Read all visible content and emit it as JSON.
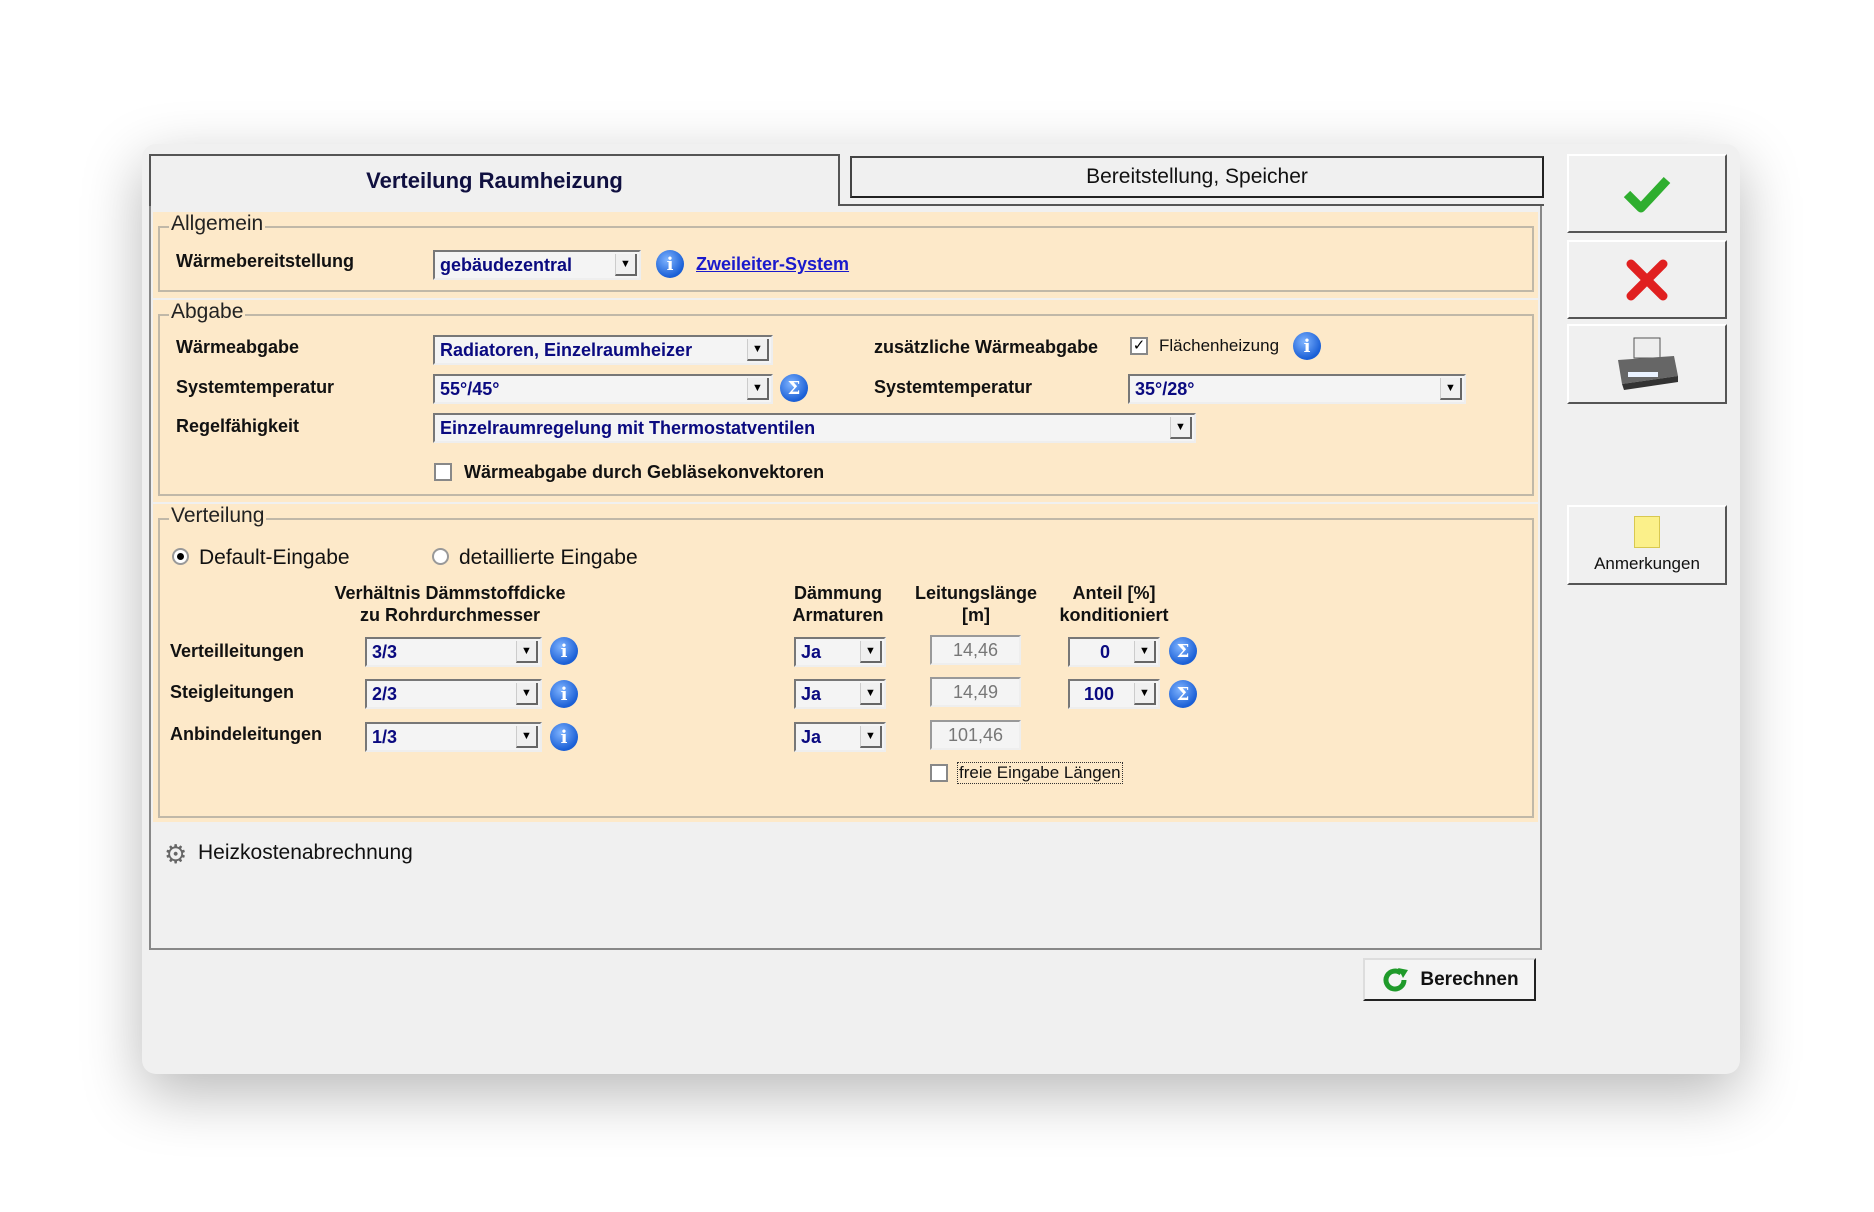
{
  "tabs": [
    {
      "label": "Verteilung Raumheizung",
      "active": true
    },
    {
      "label": "Bereitstellung, Speicher",
      "active": false
    }
  ],
  "allgemein": {
    "legend": "Allgemein",
    "waermebereitstellung": {
      "label": "Wärmebereitstellung",
      "value": "gebäudezentral"
    },
    "link": "Zweileiter-System"
  },
  "abgabe": {
    "legend": "Abgabe",
    "waermeabgabe": {
      "label": "Wärmeabgabe",
      "value": "Radiatoren, Einzelraumheizer"
    },
    "systemtemperatur": {
      "label": "Systemtemperatur",
      "value": "55°/45°"
    },
    "regelfaehigkeit": {
      "label": "Regelfähigkeit",
      "value": "Einzelraumregelung mit Thermostatventilen"
    },
    "geblaese": {
      "label": "Wärmeabgabe durch Gebläsekonvektoren",
      "checked": false
    },
    "zusaetzlich": {
      "label": "zusätzliche Wärmeabgabe",
      "checkbox_label": "Flächenheizung",
      "checked": true
    },
    "systemtemperatur2": {
      "label": "Systemtemperatur",
      "value": "35°/28°"
    }
  },
  "verteilung": {
    "legend": "Verteilung",
    "radio_default": {
      "label": "Default-Eingabe",
      "selected": true
    },
    "radio_detail": {
      "label": "detaillierte Eingabe",
      "selected": false
    },
    "headers": {
      "verhaeltnis1": "Verhältnis Dämmstoffdicke",
      "verhaeltnis2": "zu Rohrdurchmesser",
      "daemmung1": "Dämmung",
      "daemmung2": "Armaturen",
      "laenge1": "Leitungslänge",
      "laenge2": "[m]",
      "anteil1": "Anteil [%]",
      "anteil2": "konditioniert"
    },
    "rows": [
      {
        "label": "Verteilleitungen",
        "ratio": "3/3",
        "daemmung": "Ja",
        "laenge": "14,46",
        "anteil": "0"
      },
      {
        "label": "Steigleitungen",
        "ratio": "2/3",
        "daemmung": "Ja",
        "laenge": "14,49",
        "anteil": "100"
      },
      {
        "label": "Anbindeleitungen",
        "ratio": "1/3",
        "daemmung": "Ja",
        "laenge": "101,46"
      }
    ],
    "freie_eingabe": {
      "label": "freie Eingabe Längen",
      "checked": false
    }
  },
  "heizkosten": {
    "label": "Heizkostenabrechnung"
  },
  "berechnen": "Berechnen",
  "side": {
    "ok_icon": "check-icon",
    "cancel_icon": "close-icon",
    "print_icon": "printer-icon",
    "notes_label": "Anmerkungen"
  },
  "colors": {
    "group_bg": "#fde9c9",
    "value_text": "#0a0a80",
    "link": "#1a1acc",
    "ok": "#2fae2f",
    "cancel": "#e02020"
  }
}
